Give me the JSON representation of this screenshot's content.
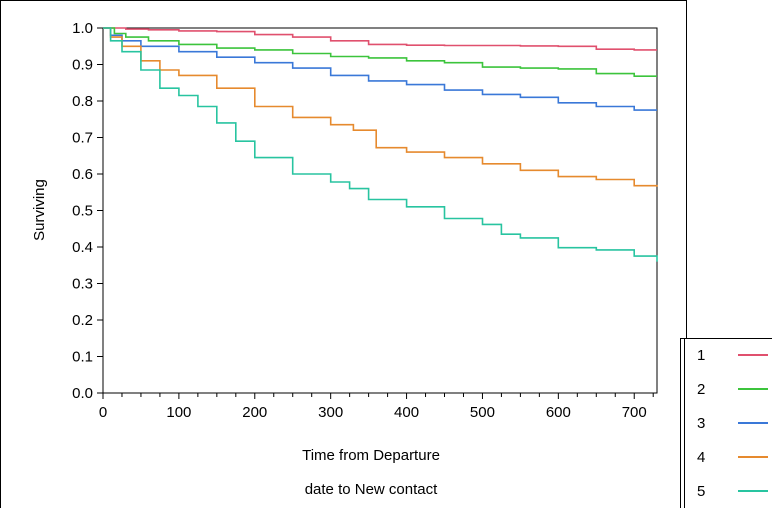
{
  "chart_data": {
    "type": "line",
    "title": "",
    "xlabel_lines": [
      "Time from Departure",
      "date to New contact"
    ],
    "ylabel": "Surviving",
    "xlim": [
      0,
      730
    ],
    "ylim": [
      0,
      1
    ],
    "x_ticks": [
      "0",
      "100",
      "200",
      "300",
      "400",
      "500",
      "600",
      "700"
    ],
    "y_ticks": [
      "0.0",
      "0.1",
      "0.2",
      "0.3",
      "0.4",
      "0.5",
      "0.6",
      "0.7",
      "0.8",
      "0.9",
      "1.0"
    ],
    "grid": false,
    "legend_position": "bottom-right",
    "series": [
      {
        "name": "1",
        "color": "#e0506e",
        "points": [
          [
            0,
            1.0
          ],
          [
            30,
            0.997
          ],
          [
            60,
            0.995
          ],
          [
            100,
            0.992
          ],
          [
            150,
            0.99
          ],
          [
            200,
            0.982
          ],
          [
            250,
            0.975
          ],
          [
            300,
            0.965
          ],
          [
            350,
            0.955
          ],
          [
            400,
            0.953
          ],
          [
            450,
            0.952
          ],
          [
            500,
            0.952
          ],
          [
            550,
            0.951
          ],
          [
            600,
            0.95
          ],
          [
            650,
            0.942
          ],
          [
            700,
            0.94
          ],
          [
            730,
            0.94
          ]
        ]
      },
      {
        "name": "2",
        "color": "#3cc43c",
        "points": [
          [
            0,
            1.0
          ],
          [
            15,
            0.985
          ],
          [
            30,
            0.975
          ],
          [
            60,
            0.965
          ],
          [
            100,
            0.955
          ],
          [
            150,
            0.945
          ],
          [
            200,
            0.94
          ],
          [
            250,
            0.93
          ],
          [
            300,
            0.922
          ],
          [
            350,
            0.918
          ],
          [
            400,
            0.91
          ],
          [
            450,
            0.905
          ],
          [
            500,
            0.893
          ],
          [
            550,
            0.89
          ],
          [
            600,
            0.888
          ],
          [
            650,
            0.875
          ],
          [
            700,
            0.868
          ],
          [
            730,
            0.868
          ]
        ]
      },
      {
        "name": "3",
        "color": "#3a78d8",
        "points": [
          [
            0,
            1.0
          ],
          [
            10,
            0.98
          ],
          [
            25,
            0.965
          ],
          [
            50,
            0.95
          ],
          [
            100,
            0.935
          ],
          [
            150,
            0.92
          ],
          [
            200,
            0.905
          ],
          [
            250,
            0.89
          ],
          [
            300,
            0.87
          ],
          [
            350,
            0.855
          ],
          [
            400,
            0.845
          ],
          [
            450,
            0.83
          ],
          [
            500,
            0.818
          ],
          [
            550,
            0.81
          ],
          [
            600,
            0.795
          ],
          [
            650,
            0.785
          ],
          [
            700,
            0.775
          ],
          [
            730,
            0.775
          ]
        ]
      },
      {
        "name": "4",
        "color": "#e68a2e",
        "points": [
          [
            0,
            1.0
          ],
          [
            10,
            0.975
          ],
          [
            25,
            0.95
          ],
          [
            50,
            0.91
          ],
          [
            75,
            0.885
          ],
          [
            100,
            0.87
          ],
          [
            150,
            0.835
          ],
          [
            200,
            0.785
          ],
          [
            250,
            0.755
          ],
          [
            300,
            0.735
          ],
          [
            330,
            0.72
          ],
          [
            360,
            0.672
          ],
          [
            400,
            0.66
          ],
          [
            450,
            0.645
          ],
          [
            500,
            0.628
          ],
          [
            550,
            0.61
          ],
          [
            600,
            0.593
          ],
          [
            650,
            0.585
          ],
          [
            700,
            0.568
          ],
          [
            730,
            0.565
          ]
        ]
      },
      {
        "name": "5",
        "color": "#28c4a0",
        "points": [
          [
            0,
            1.0
          ],
          [
            10,
            0.965
          ],
          [
            25,
            0.935
          ],
          [
            50,
            0.885
          ],
          [
            75,
            0.835
          ],
          [
            100,
            0.815
          ],
          [
            125,
            0.785
          ],
          [
            150,
            0.74
          ],
          [
            175,
            0.69
          ],
          [
            200,
            0.645
          ],
          [
            250,
            0.6
          ],
          [
            300,
            0.578
          ],
          [
            325,
            0.56
          ],
          [
            350,
            0.53
          ],
          [
            400,
            0.51
          ],
          [
            450,
            0.478
          ],
          [
            500,
            0.462
          ],
          [
            525,
            0.435
          ],
          [
            550,
            0.425
          ],
          [
            600,
            0.398
          ],
          [
            650,
            0.392
          ],
          [
            700,
            0.375
          ],
          [
            730,
            0.36
          ]
        ]
      }
    ]
  }
}
